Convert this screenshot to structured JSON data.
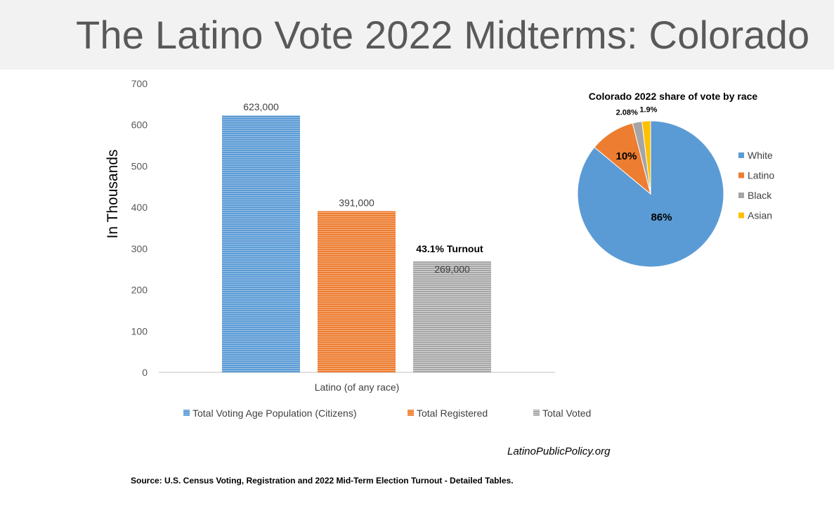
{
  "page": {
    "title": "The Latino Vote 2022 Midterms: Colorado",
    "brand": "LatinoPublicPolicy.org",
    "source": "Source: U.S. Census Voting, Registration and 2022 Mid-Term Election Turnout - Detailed Tables."
  },
  "chart_data": [
    {
      "type": "bar",
      "title": "",
      "ylabel": "In Thousands",
      "ylim": [
        0,
        700
      ],
      "yticks": [
        "0",
        "100",
        "200",
        "300",
        "400",
        "500",
        "600",
        "700"
      ],
      "categories": [
        "Latino (of any race)"
      ],
      "grid": false,
      "legend_position": "bottom",
      "annotation": "43.1% Turnout",
      "series": [
        {
          "name": "Total Voting Age Population (Citizens)",
          "values": [
            623
          ],
          "label": "623,000",
          "color": "#5b9bd5"
        },
        {
          "name": "Total Registered",
          "values": [
            391
          ],
          "label": "391,000",
          "color": "#ed7d31"
        },
        {
          "name": "Total Voted",
          "values": [
            269
          ],
          "label": "269,000",
          "color": "#a5a5a5"
        }
      ]
    },
    {
      "type": "pie",
      "title": "Colorado 2022 share of vote by race",
      "legend_position": "right",
      "slices": [
        {
          "name": "White",
          "value": 86,
          "label": "86%",
          "color": "#5b9bd5"
        },
        {
          "name": "Latino",
          "value": 10,
          "label": "10%",
          "color": "#ed7d31"
        },
        {
          "name": "Black",
          "value": 2.08,
          "label": "2.08%",
          "color": "#a5a5a5"
        },
        {
          "name": "Asian",
          "value": 1.9,
          "label": "1.9%",
          "color": "#ffc000"
        }
      ]
    }
  ]
}
